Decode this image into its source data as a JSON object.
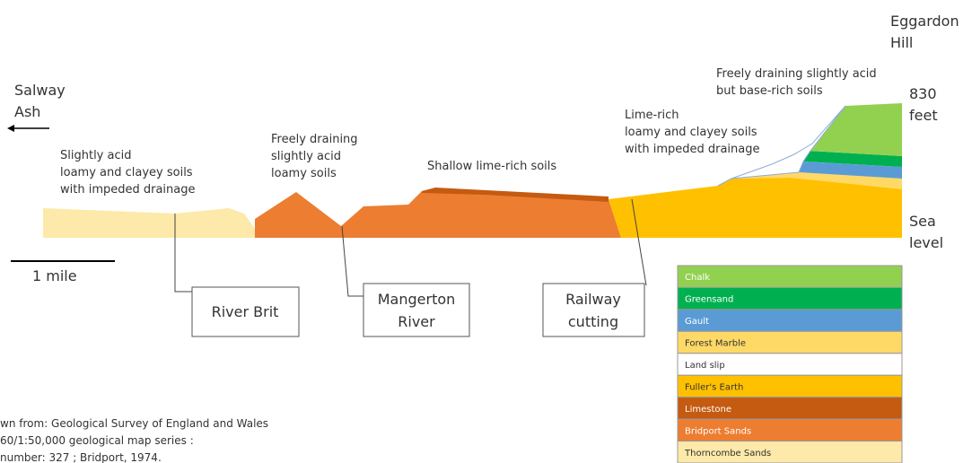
{
  "places": {
    "eggardon_hill": [
      "Eggardon",
      "Hill"
    ],
    "salway_ash": [
      "Salway",
      "Ash"
    ],
    "height": [
      "830",
      "feet"
    ],
    "sea_level": [
      "Sea",
      "level"
    ]
  },
  "soils": {
    "chalk_soils": [
      "Freely draining slightly acid",
      "but base-rich soils"
    ],
    "lime_rich": [
      "Lime-rich",
      "loamy and clayey soils",
      "with impeded drainage"
    ],
    "shallow": [
      "Shallow lime-rich soils"
    ],
    "freely_draining": [
      "Freely draining",
      "slightly acid",
      "loamy soils"
    ],
    "slightly_acid": [
      "Slightly acid",
      "loamy and clayey soils",
      "with impeded drainage"
    ]
  },
  "scale": "1 mile",
  "callouts": {
    "river_brit": [
      "River Brit"
    ],
    "mangerton": [
      "Mangerton",
      "River"
    ],
    "railway": [
      "Railway",
      "cutting"
    ]
  },
  "legend": [
    "Chalk",
    "Greensand",
    "Gault",
    "Forest Marble",
    "Land slip",
    "Fuller's Earth",
    "Limestone",
    "Bridport Sands",
    "Thorncombe Sands"
  ],
  "source": [
    "wn from: Geological Survey of England and Wales",
    "60/1:50,000 geological map series :",
    "number: 327 ; Bridport, 1974."
  ]
}
